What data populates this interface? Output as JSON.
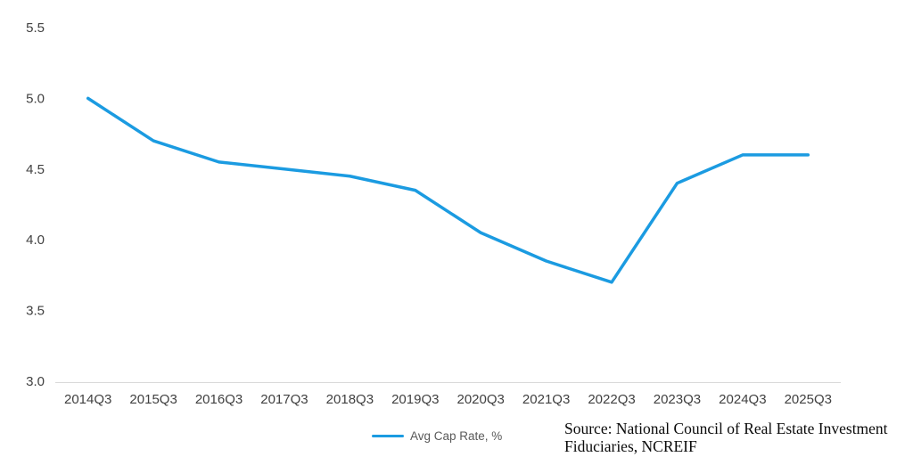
{
  "chart_data": {
    "type": "line",
    "title": "",
    "xlabel": "",
    "ylabel": "",
    "categories": [
      "2014Q3",
      "2015Q3",
      "2016Q3",
      "2017Q3",
      "2018Q3",
      "2019Q3",
      "2020Q3",
      "2021Q3",
      "2022Q3",
      "2023Q3",
      "2024Q3",
      "2025Q3"
    ],
    "series": [
      {
        "name": "Avg Cap Rate, %",
        "values": [
          5.0,
          4.7,
          4.55,
          4.5,
          4.45,
          4.35,
          4.05,
          3.85,
          3.7,
          4.4,
          4.6,
          4.6
        ]
      }
    ],
    "ylim": [
      3.0,
      5.5
    ],
    "yticks": [
      3.0,
      3.5,
      4.0,
      4.5,
      5.0,
      5.5
    ],
    "ytick_labels": [
      "3.0",
      "3.5",
      "4.0",
      "4.5",
      "5.0",
      "5.5"
    ],
    "grid": false,
    "legend_position": "bottom"
  },
  "legend": {
    "label": "Avg Cap Rate, %"
  },
  "source": {
    "line1": "Source: National Council of Real Estate Investment",
    "line2": "Fiduciaries, NCREIF"
  },
  "colors": {
    "line": "#1b9be1",
    "axis_line": "#d9d9d9",
    "tick_text": "#404040",
    "legend_text": "#595959",
    "source_text": "#0a0a0a"
  }
}
